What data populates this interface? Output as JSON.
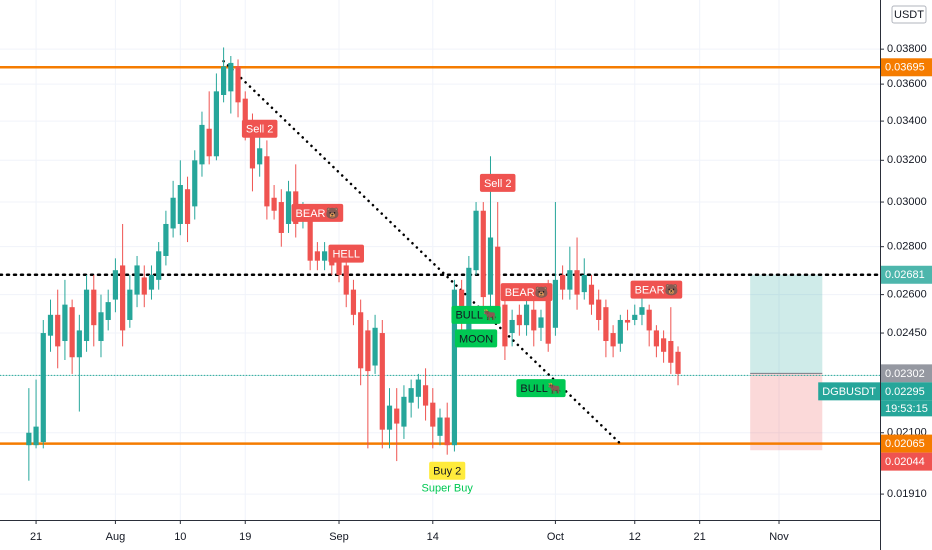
{
  "chart_data": {
    "type": "candlestick",
    "currency": "USDT",
    "log": true,
    "grid": true,
    "up_color": "#26a69a",
    "down_color": "#ef5350",
    "ylim": [
      0.01835,
      0.041
    ],
    "yticks": [
      {
        "value": 0.038,
        "label": "0.03800"
      },
      {
        "value": 0.036,
        "label": "0.03600"
      },
      {
        "value": 0.034,
        "label": "0.03400"
      },
      {
        "value": 0.032,
        "label": "0.03200"
      },
      {
        "value": 0.03,
        "label": "0.03000"
      },
      {
        "value": 0.028,
        "label": "0.02800"
      },
      {
        "value": 0.026,
        "label": "0.02600"
      },
      {
        "value": 0.0245,
        "label": "0.02450"
      },
      {
        "value": 0.021,
        "label": "0.02100"
      },
      {
        "value": 0.0191,
        "label": "0.01910"
      }
    ],
    "xlim": [
      "07-16",
      "11-15"
    ],
    "xticks": [
      {
        "value": "07-21",
        "label": "21"
      },
      {
        "value": "08-01",
        "label": "Aug"
      },
      {
        "value": "08-10",
        "label": "10"
      },
      {
        "value": "08-19",
        "label": "19"
      },
      {
        "value": "09-01",
        "label": "Sep"
      },
      {
        "value": "09-14",
        "label": "14"
      },
      {
        "value": "10-01",
        "label": "Oct"
      },
      {
        "value": "10-12",
        "label": "12"
      },
      {
        "value": "10-21",
        "label": "21"
      },
      {
        "value": "11-01",
        "label": "Nov"
      }
    ],
    "x": [
      "07-20",
      "07-21",
      "07-22",
      "07-23",
      "07-24",
      "07-25",
      "07-26",
      "07-27",
      "07-28",
      "07-29",
      "07-30",
      "07-31",
      "08-01",
      "08-02",
      "08-03",
      "08-04",
      "08-05",
      "08-06",
      "08-07",
      "08-08",
      "08-09",
      "08-10",
      "08-11",
      "08-12",
      "08-13",
      "08-14",
      "08-15",
      "08-16",
      "08-17",
      "08-18",
      "08-19",
      "08-20",
      "08-21",
      "08-22",
      "08-23",
      "08-24",
      "08-25",
      "08-26",
      "08-27",
      "08-28",
      "08-29",
      "08-30",
      "08-31",
      "09-01",
      "09-02",
      "09-03",
      "09-04",
      "09-05",
      "09-06",
      "09-07",
      "09-08",
      "09-09",
      "09-10",
      "09-11",
      "09-12",
      "09-13",
      "09-14",
      "09-15",
      "09-16",
      "09-17",
      "09-18",
      "09-19",
      "09-20",
      "09-21",
      "09-22",
      "09-23",
      "09-24",
      "09-25",
      "09-26",
      "09-27",
      "09-28",
      "09-29",
      "09-30",
      "10-01",
      "10-02",
      "10-03",
      "10-04",
      "10-05",
      "10-06",
      "10-07",
      "10-08",
      "10-09",
      "10-10",
      "10-11",
      "10-12",
      "10-13",
      "10-14",
      "10-15",
      "10-16",
      "10-17",
      "10-18"
    ],
    "open": [
      0.0206,
      0.0206,
      0.0207,
      0.0244,
      0.0252,
      0.0242,
      0.0255,
      0.0236,
      0.0242,
      0.0262,
      0.0242,
      0.025,
      0.0258,
      0.0272,
      0.025,
      0.026,
      0.0267,
      0.0262,
      0.0266,
      0.0276,
      0.0288,
      0.029,
      0.0306,
      0.0298,
      0.0318,
      0.0336,
      0.0322,
      0.0354,
      0.0356,
      0.037,
      0.0352,
      0.034,
      0.0318,
      0.0322,
      0.0302,
      0.03,
      0.029,
      0.0305,
      0.0292,
      0.0294,
      0.0278,
      0.0274,
      0.0276,
      0.0276,
      0.0272,
      0.0262,
      0.0253,
      0.0246,
      0.0233,
      0.0245,
      0.0211,
      0.0218,
      0.0212,
      0.022,
      0.0222,
      0.0226,
      0.022,
      0.0209,
      0.0215,
      0.0206,
      0.0262,
      0.0244,
      0.027,
      0.0296,
      0.026,
      0.028,
      0.0256,
      0.0245,
      0.0252,
      0.0248,
      0.0254,
      0.0247,
      0.0258,
      0.0247,
      0.0268,
      0.0262,
      0.027,
      0.0261,
      0.0264,
      0.0258,
      0.0255,
      0.0245,
      0.0241,
      0.025,
      0.025,
      0.0252,
      0.0254,
      0.0246,
      0.0243,
      0.0242,
      0.0238
    ],
    "high": [
      0.0225,
      0.0228,
      0.025,
      0.0258,
      0.0262,
      0.0266,
      0.0258,
      0.0252,
      0.0268,
      0.0268,
      0.026,
      0.0262,
      0.0275,
      0.029,
      0.0268,
      0.0276,
      0.0272,
      0.0272,
      0.0282,
      0.0296,
      0.031,
      0.032,
      0.0312,
      0.0325,
      0.0345,
      0.0356,
      0.0366,
      0.0381,
      0.0376,
      0.0374,
      0.0356,
      0.0344,
      0.0336,
      0.033,
      0.0308,
      0.0306,
      0.031,
      0.0318,
      0.03,
      0.0298,
      0.0282,
      0.0282,
      0.028,
      0.028,
      0.0278,
      0.0266,
      0.0258,
      0.025,
      0.0252,
      0.025,
      0.0225,
      0.0225,
      0.0226,
      0.0228,
      0.023,
      0.0232,
      0.0225,
      0.0218,
      0.022,
      0.0266,
      0.0266,
      0.0276,
      0.03,
      0.03,
      0.0322,
      0.03,
      0.0262,
      0.0254,
      0.0256,
      0.026,
      0.0258,
      0.0254,
      0.0266,
      0.03,
      0.0272,
      0.028,
      0.0284,
      0.0275,
      0.0268,
      0.0262,
      0.0258,
      0.0248,
      0.0252,
      0.0254,
      0.0256,
      0.0262,
      0.0256,
      0.0248,
      0.0246,
      0.0255,
      0.024
    ],
    "low": [
      0.0195,
      0.0205,
      0.0205,
      0.0238,
      0.0232,
      0.0235,
      0.023,
      0.0217,
      0.0238,
      0.024,
      0.0236,
      0.0246,
      0.0253,
      0.024,
      0.0247,
      0.0255,
      0.0255,
      0.0258,
      0.0262,
      0.0272,
      0.0284,
      0.0285,
      0.0282,
      0.0292,
      0.0312,
      0.0318,
      0.032,
      0.035,
      0.0344,
      0.0342,
      0.033,
      0.0305,
      0.0312,
      0.0292,
      0.0292,
      0.028,
      0.0286,
      0.0284,
      0.0288,
      0.027,
      0.027,
      0.027,
      0.0268,
      0.0265,
      0.0255,
      0.0248,
      0.0226,
      0.0205,
      0.023,
      0.0205,
      0.0205,
      0.0201,
      0.0208,
      0.0215,
      0.0218,
      0.0214,
      0.0205,
      0.0206,
      0.0203,
      0.0204,
      0.024,
      0.024,
      0.0268,
      0.0253,
      0.0255,
      0.025,
      0.0235,
      0.024,
      0.0244,
      0.0244,
      0.024,
      0.0242,
      0.0238,
      0.0244,
      0.0258,
      0.0258,
      0.0254,
      0.0258,
      0.0252,
      0.0246,
      0.0236,
      0.0236,
      0.0238,
      0.0246,
      0.0248,
      0.0248,
      0.024,
      0.0236,
      0.0234,
      0.023,
      0.0226
    ],
    "close": [
      0.021,
      0.0212,
      0.0245,
      0.0252,
      0.024,
      0.0256,
      0.0236,
      0.0246,
      0.0262,
      0.0248,
      0.0253,
      0.0257,
      0.027,
      0.0246,
      0.0262,
      0.0272,
      0.026,
      0.0268,
      0.0278,
      0.029,
      0.0302,
      0.0308,
      0.029,
      0.032,
      0.0338,
      0.0322,
      0.0356,
      0.037,
      0.0372,
      0.035,
      0.0338,
      0.0316,
      0.0326,
      0.0298,
      0.0296,
      0.0286,
      0.0305,
      0.029,
      0.0297,
      0.0274,
      0.0274,
      0.0278,
      0.0272,
      0.0268,
      0.026,
      0.0252,
      0.0232,
      0.0231,
      0.0247,
      0.0211,
      0.0219,
      0.0213,
      0.0222,
      0.0225,
      0.0228,
      0.0219,
      0.0212,
      0.0215,
      0.0206,
      0.0262,
      0.0249,
      0.0271,
      0.0296,
      0.0259,
      0.0284,
      0.0254,
      0.024,
      0.025,
      0.0248,
      0.0256,
      0.0246,
      0.0251,
      0.0241,
      0.0266,
      0.0262,
      0.027,
      0.026,
      0.0268,
      0.0256,
      0.025,
      0.0242,
      0.024,
      0.025,
      0.0249,
      0.0252,
      0.0255,
      0.0246,
      0.024,
      0.0238,
      0.0234,
      0.023
    ],
    "levels": [
      {
        "value": 0.03695,
        "line": "solid",
        "color": "#f57c00"
      },
      {
        "value": 0.02065,
        "line": "solid",
        "color": "#f57c00"
      },
      {
        "value": 0.02681,
        "line": "dotted",
        "color": "#000000"
      },
      {
        "value": 0.02295,
        "line": "fine",
        "color": "#26a69a"
      }
    ],
    "trendline": {
      "x": [
        "08-16",
        "10-10"
      ],
      "y": [
        0.0373,
        0.02065
      ],
      "color": "#000000"
    },
    "position": {
      "x": [
        "10-28",
        "11-07"
      ],
      "target": 0.02681,
      "entry": 0.02302,
      "stop": 0.02044
    },
    "annotations": [
      {
        "text": "Sell 2",
        "x": "08-21",
        "y": 0.0336,
        "style": "red"
      },
      {
        "text": "BEAR🐻",
        "x": "08-29",
        "y": 0.0295,
        "style": "red"
      },
      {
        "text": "HELL",
        "x": "09-02",
        "y": 0.0277,
        "style": "red"
      },
      {
        "text": "Sell 2",
        "x": "09-23",
        "y": 0.0309,
        "style": "red"
      },
      {
        "text": "BEAR🐻",
        "x": "09-27",
        "y": 0.0261,
        "style": "red"
      },
      {
        "text": "BEAR🐻",
        "x": "10-15",
        "y": 0.0262,
        "style": "red"
      },
      {
        "text": "BULL🐂",
        "x": "09-20",
        "y": 0.0252,
        "style": "green"
      },
      {
        "text": "MOON",
        "x": "09-20",
        "y": 0.0243,
        "style": "green"
      },
      {
        "text": "BULL🐂",
        "x": "09-29",
        "y": 0.0225,
        "style": "green"
      },
      {
        "text": "Buy 2",
        "x": "09-16",
        "y": 0.0198,
        "style": "yellow"
      },
      {
        "text": "Super Buy",
        "x": "09-16",
        "y": 0.0193,
        "style": "plain"
      }
    ],
    "price_labels": [
      {
        "value": 0.03695,
        "color": "#f57c00"
      },
      {
        "value": 0.02681,
        "color": "#4db6ac"
      },
      {
        "value": 0.02302,
        "color": "#9598a1"
      },
      {
        "value": 0.02295,
        "color": "#26a69a",
        "symbol": "DGBUSDT",
        "countdown": "19:53:15"
      },
      {
        "value": 0.02065,
        "color": "#f57c00"
      },
      {
        "value": 0.02044,
        "color": "#ef5350"
      }
    ]
  }
}
